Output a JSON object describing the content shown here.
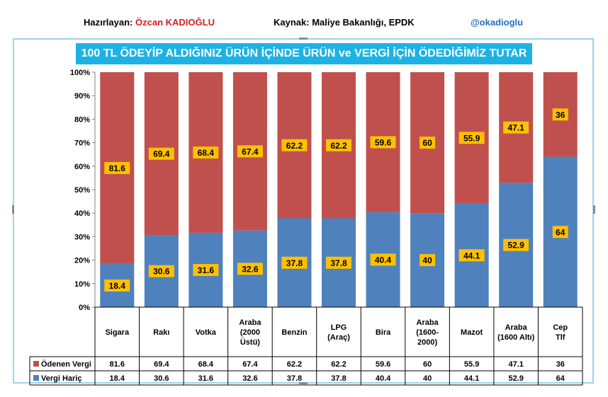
{
  "header": {
    "author_label": "Hazırlayan:",
    "author_name": "Özcan KADIOĞLU",
    "source": "Kaynak: Maliye  Bakanlığı, EPDK",
    "handle": "@okadioglu"
  },
  "colors": {
    "tax": "#c0504d",
    "ex_tax": "#4f81bd",
    "label_bg": "#ffc000",
    "title_bg": "#1eb2e4",
    "frame": "#9ed3e6"
  },
  "chart_data": {
    "type": "bar",
    "stacked": true,
    "percent": true,
    "title": "100 TL ÖDEYİP ALDIĞINIZ ÜRÜN İÇİNDE ÜRÜN ve VERGİ İÇİN ÖDEDİĞİMİZ TUTAR",
    "categories": [
      [
        "Sigara"
      ],
      [
        "Rakı"
      ],
      [
        "Votka"
      ],
      [
        "Araba",
        "(2000",
        "Üstü)"
      ],
      [
        "Benzin"
      ],
      [
        "LPG",
        "(Araç)"
      ],
      [
        "Bira"
      ],
      [
        "Araba",
        "(1600-",
        "2000)"
      ],
      [
        "Mazot"
      ],
      [
        "Araba",
        "(1600 Altı)"
      ],
      [
        "Cep",
        "Tlf"
      ]
    ],
    "series": [
      {
        "name": "Ödenen Vergi",
        "color": "#c0504d",
        "values": [
          81.6,
          69.4,
          68.4,
          67.4,
          62.2,
          62.2,
          59.6,
          60,
          55.9,
          47.1,
          36
        ]
      },
      {
        "name": "Vergi Hariç",
        "color": "#4f81bd",
        "values": [
          18.4,
          30.6,
          31.6,
          32.6,
          37.8,
          37.8,
          40.4,
          40,
          44.1,
          52.9,
          64
        ]
      }
    ],
    "ylim": [
      0,
      100
    ],
    "yticks": [
      "0%",
      "10%",
      "20%",
      "30%",
      "40%",
      "50%",
      "60%",
      "70%",
      "80%",
      "90%",
      "100%"
    ],
    "grid": false,
    "legend": "data-table"
  }
}
